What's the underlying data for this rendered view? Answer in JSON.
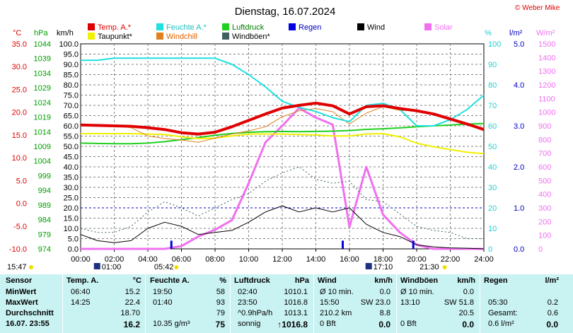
{
  "header": {
    "title": "Dienstag, 16.07.2024",
    "copyright": "© Weber Mike"
  },
  "legend": [
    {
      "label": "Temp. A.*",
      "color": "#e00000"
    },
    {
      "label": "Feuchte A.*",
      "color": "#20e0e0"
    },
    {
      "label": "Luftdruck",
      "color": "#20d020"
    },
    {
      "label": "Regen",
      "color": "#0000e0"
    },
    {
      "label": "Wind",
      "color": "#000000"
    },
    {
      "label": "Solar",
      "color": "#f070f0"
    },
    {
      "label": "Taupunkt*",
      "color": "#f0f000"
    },
    {
      "label": "Windchill",
      "color": "#e08020"
    },
    {
      "label": "Windböen*",
      "color": "#406060"
    }
  ],
  "axes": {
    "temp": {
      "unit": "°C",
      "ticks": [
        "35.0",
        "30.0",
        "25.0",
        "20.0",
        "15.0",
        "10.0",
        "5.0",
        "0.0",
        "-5.0",
        "-10.0"
      ],
      "min": -10,
      "max": 35,
      "color": "#e00000"
    },
    "pressure": {
      "unit": "hPa",
      "ticks": [
        "1044",
        "1039",
        "1034",
        "1029",
        "1024",
        "1019",
        "1014",
        "1009",
        "1004",
        "999",
        "994",
        "989",
        "984",
        "979",
        "974"
      ],
      "min": 974,
      "max": 1044,
      "color": "#00a000"
    },
    "wind": {
      "unit": "km/h",
      "ticks": [
        "100.0",
        "95.0",
        "90.0",
        "85.0",
        "80.0",
        "75.0",
        "70.0",
        "65.0",
        "60.0",
        "55.0",
        "50.0",
        "45.0",
        "40.0",
        "35.0",
        "30.0",
        "25.0",
        "20.0",
        "15.0",
        "10.0",
        "5.0",
        "0.0"
      ],
      "min": 0,
      "max": 100,
      "color": "#000000"
    },
    "humidity": {
      "unit": "%",
      "ticks": [
        "100",
        "90",
        "80",
        "70",
        "60",
        "50",
        "40",
        "30",
        "20",
        "10",
        "0"
      ],
      "min": 0,
      "max": 100,
      "color": "#20d0d0"
    },
    "rain": {
      "unit": "l/m²",
      "ticks": [
        "5.0",
        "4.0",
        "3.0",
        "2.0",
        "1.0",
        "0.0"
      ],
      "min": 0,
      "max": 5,
      "color": "#0000c0"
    },
    "solar": {
      "unit": "W/m²",
      "ticks": [
        "1500",
        "1400",
        "1300",
        "1200",
        "1100",
        "1000",
        "900",
        "800",
        "700",
        "600",
        "500",
        "400",
        "300",
        "200",
        "100",
        "0"
      ],
      "min": 0,
      "max": 1500,
      "color": "#f070f0"
    },
    "time": {
      "ticks": [
        "00:00",
        "02:00",
        "04:00",
        "06:00",
        "08:00",
        "10:00",
        "12:00",
        "14:00",
        "16:00",
        "18:00",
        "20:00",
        "22:00",
        "24:00"
      ]
    }
  },
  "sun_moon": {
    "now": "15:47",
    "moonrise": "01:00",
    "sunrise": "05:42",
    "moonset": "17:10",
    "sunset": "21:30"
  },
  "chart_data": {
    "type": "line",
    "title": "Dienstag, 16.07.2024",
    "x_hours": [
      0,
      1,
      2,
      3,
      4,
      5,
      6,
      7,
      8,
      9,
      10,
      11,
      12,
      13,
      14,
      15,
      16,
      17,
      18,
      19,
      20,
      21,
      22,
      23,
      24
    ],
    "series": [
      {
        "name": "Temp. A.*",
        "axis": "temp",
        "values": [
          17.2,
          17.1,
          17.0,
          16.9,
          16.6,
          16.2,
          15.5,
          15.2,
          15.6,
          16.8,
          18.2,
          19.6,
          20.9,
          21.5,
          22.0,
          21.4,
          19.6,
          21.2,
          21.4,
          20.8,
          20.3,
          19.6,
          18.5,
          17.4,
          16.2
        ]
      },
      {
        "name": "Feuchte A.*",
        "axis": "humidity",
        "values": [
          92,
          92,
          93,
          93,
          93,
          93,
          93,
          93,
          93,
          90,
          85,
          79,
          72,
          69,
          67,
          64,
          62,
          70,
          71,
          68,
          60,
          60,
          63,
          68,
          75
        ]
      },
      {
        "name": "Luftdruck",
        "axis": "pressure",
        "values": [
          1010.1,
          1010.0,
          1009.9,
          1009.9,
          1010.1,
          1010.6,
          1011.3,
          1012.0,
          1012.8,
          1013.4,
          1013.8,
          1014.0,
          1014.1,
          1014.0,
          1014.1,
          1014.2,
          1014.4,
          1014.8,
          1015.0,
          1015.3,
          1015.7,
          1016.0,
          1016.3,
          1016.6,
          1016.8
        ]
      },
      {
        "name": "Taupunkt*",
        "axis": "temp",
        "values": [
          15.3,
          15.3,
          15.3,
          15.3,
          15.2,
          15.1,
          14.6,
          14.2,
          14.3,
          14.8,
          15.2,
          15.2,
          15.2,
          15.1,
          15.0,
          14.8,
          14.8,
          15.2,
          15.3,
          14.6,
          13.2,
          12.4,
          11.8,
          11.2,
          10.9
        ]
      },
      {
        "name": "Windchill",
        "axis": "temp",
        "values": [
          17.2,
          17.1,
          17.0,
          16.6,
          14.8,
          14.2,
          13.9,
          13.4,
          14.3,
          15.2,
          15.9,
          16.8,
          19.0,
          20.3,
          20.8,
          20.1,
          17.4,
          19.8,
          21.2,
          20.4,
          20.3,
          19.6,
          18.5,
          17.4,
          16.2
        ]
      },
      {
        "name": "Wind",
        "axis": "wind",
        "values": [
          7,
          4,
          3,
          4,
          10,
          13,
          11,
          7,
          8,
          9,
          13,
          18,
          21,
          18,
          20,
          18,
          20,
          12,
          8,
          6,
          2,
          1,
          0.5,
          0.3,
          0
        ]
      },
      {
        "name": "Windböen*",
        "axis": "wind",
        "values": [
          10,
          8,
          8,
          11,
          18,
          23,
          20,
          16,
          20,
          24,
          27,
          33,
          37,
          40,
          34,
          32,
          33,
          24,
          23,
          17,
          11,
          9,
          8,
          5,
          5
        ]
      },
      {
        "name": "Solar",
        "axis": "solar",
        "values": [
          0,
          0,
          0,
          0,
          0,
          0,
          20,
          90,
          140,
          210,
          480,
          780,
          900,
          1030,
          960,
          910,
          160,
          600,
          250,
          120,
          30,
          0,
          0,
          0,
          0
        ]
      },
      {
        "name": "Regen",
        "axis": "rain",
        "type": "bar",
        "x_hours": [
          5.4,
          15.6,
          19.8
        ],
        "values": [
          0.2,
          0.2,
          0.2
        ]
      }
    ],
    "xlim": [
      0,
      24
    ],
    "rain_reference_level": 1.0
  },
  "stats": {
    "headers": [
      {
        "label": "Sensor"
      },
      {
        "label": "Temp. A.",
        "unit": "°C"
      },
      {
        "label": "Feuchte A.",
        "unit": "%"
      },
      {
        "label": "Luftdruck",
        "unit": "hPa"
      },
      {
        "label": "Wind",
        "unit": "km/h"
      },
      {
        "label": "Windböen",
        "unit": "km/h"
      },
      {
        "label": "Regen",
        "unit": "l/m²"
      }
    ],
    "rows": [
      {
        "label": "MinWert",
        "cells": [
          "06:40",
          "15.2",
          "19:50",
          "58",
          "02:40",
          "1010.1",
          "Ø 10 min.",
          "0.0",
          "Ø 10 min.",
          "0.0",
          "",
          ""
        ]
      },
      {
        "label": "MaxWert",
        "cells": [
          "14:25",
          "22.4",
          "01:40",
          "93",
          "23:50",
          "1016.8",
          "15:50",
          "SW 23.0",
          "13:10",
          "SW 51.8",
          "05:30",
          "0.2"
        ]
      },
      {
        "label": "Durchschnitt",
        "cells": [
          "",
          "18.70",
          "",
          "79",
          "^0.9hPa/h",
          "1013.1",
          "210.2 km",
          "8.8",
          "",
          "20.5",
          "Gesamt:",
          "0.6"
        ]
      },
      {
        "label": "16.07. 23:55",
        "cells": [
          "",
          "16.2",
          "10.35 g/m³",
          "75",
          "sonnig",
          "↑1016.8",
          "0 Bft",
          "0.0",
          "0 Bft",
          "0.0",
          "0.6 l/m²",
          "0.0"
        ]
      }
    ]
  }
}
